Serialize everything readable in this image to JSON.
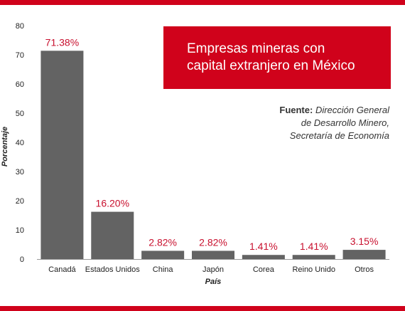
{
  "colors": {
    "accent": "#d0021b",
    "bar": "#636363",
    "label": "#c8102e"
  },
  "title": {
    "line1": "Empresas mineras con",
    "line2": "capital extranjero en México"
  },
  "source": {
    "label": "Fuente:",
    "line1": "Dirección General",
    "line2": "de Desarrollo Minero,",
    "line3": "Secretaría de Economía"
  },
  "chart_data": {
    "type": "bar",
    "xlabel": "País",
    "ylabel": "Porcentaje",
    "ylim": [
      0,
      80
    ],
    "yticks": [
      0,
      10,
      20,
      30,
      40,
      50,
      60,
      70,
      80
    ],
    "grid": false,
    "categories": [
      "Canadá",
      "Estados Unidos",
      "China",
      "Japón",
      "Corea",
      "Reino Unido",
      "Otros"
    ],
    "values": [
      71.38,
      16.2,
      2.82,
      2.82,
      1.41,
      1.41,
      3.15
    ],
    "value_labels": [
      "71.38%",
      "16.20%",
      "2.82%",
      "2.82%",
      "1.41%",
      "1.41%",
      "3.15%"
    ]
  }
}
